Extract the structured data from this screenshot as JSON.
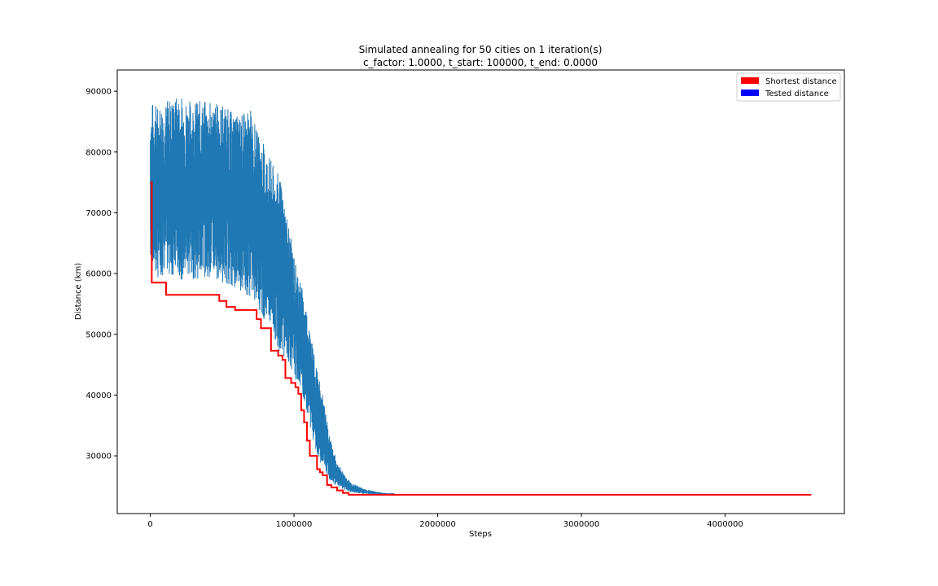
{
  "chart_data": {
    "type": "line",
    "title": "Simulated annealing for 50 cities on 1 iteration(s)",
    "subtitle": "c_factor: 1.0000, t_start: 100000, t_end: 0.0000",
    "xlabel": "Steps",
    "ylabel": "Distance (km)",
    "xlim": [
      -230000,
      4830000
    ],
    "ylim": [
      20500,
      93500
    ],
    "xticks": [
      0,
      1000000,
      2000000,
      3000000,
      4000000
    ],
    "xtick_labels": [
      "0",
      "1000000",
      "2000000",
      "3000000",
      "4000000"
    ],
    "yticks": [
      30000,
      40000,
      50000,
      60000,
      70000,
      80000,
      90000
    ],
    "ytick_labels": [
      "30000",
      "40000",
      "50000",
      "60000",
      "70000",
      "80000",
      "90000"
    ],
    "grid": false,
    "legend_position": "top-right",
    "legend": [
      {
        "label": "Shortest distance",
        "color": "#ff0000"
      },
      {
        "label": "Tested distance",
        "color": "#0000ff"
      }
    ],
    "series": [
      {
        "name": "Tested distance",
        "color": "#1f77b4",
        "envelope": {
          "x": [
            0,
            50000,
            100000,
            200000,
            300000,
            400000,
            500000,
            600000,
            700000,
            750000,
            800000,
            850000,
            900000,
            950000,
            1000000,
            1050000,
            1100000,
            1150000,
            1200000,
            1250000,
            1300000,
            1350000,
            1400000,
            1450000,
            1500000,
            1600000,
            1700000
          ],
          "upper": [
            88500,
            88000,
            88500,
            89500,
            88500,
            88500,
            88000,
            86000,
            87000,
            83000,
            81000,
            78000,
            76000,
            70000,
            63000,
            58500,
            53000,
            45000,
            40000,
            33000,
            29000,
            27000,
            25500,
            25000,
            24500,
            24000,
            23700
          ],
          "lower": [
            60000,
            59000,
            60000,
            59000,
            59000,
            59500,
            58500,
            57500,
            56000,
            54500,
            52000,
            50000,
            47000,
            46000,
            43000,
            41000,
            36000,
            31000,
            28000,
            26000,
            25000,
            24300,
            24000,
            23800,
            23700,
            23650,
            23600
          ]
        }
      },
      {
        "name": "Shortest distance",
        "color": "#ff0000",
        "x": [
          0,
          10000,
          10000,
          110000,
          110000,
          480000,
          480000,
          530000,
          530000,
          590000,
          590000,
          740000,
          740000,
          770000,
          770000,
          840000,
          840000,
          890000,
          890000,
          920000,
          920000,
          940000,
          940000,
          980000,
          980000,
          1010000,
          1010000,
          1030000,
          1030000,
          1050000,
          1050000,
          1070000,
          1070000,
          1090000,
          1090000,
          1110000,
          1110000,
          1160000,
          1160000,
          1180000,
          1180000,
          1200000,
          1200000,
          1230000,
          1230000,
          1260000,
          1260000,
          1300000,
          1300000,
          1340000,
          1340000,
          1380000,
          1380000,
          1420000,
          1420000,
          4600000
        ],
        "y": [
          75000,
          75000,
          58500,
          58500,
          56500,
          56500,
          55500,
          55500,
          54500,
          54500,
          54000,
          54000,
          52500,
          52500,
          51000,
          51000,
          47300,
          47300,
          46500,
          46500,
          45800,
          45800,
          42800,
          42800,
          42000,
          42000,
          41300,
          41300,
          40200,
          40200,
          37500,
          37500,
          35500,
          35500,
          32500,
          32500,
          30000,
          30000,
          27800,
          27800,
          27300,
          27300,
          26800,
          26800,
          25200,
          25200,
          24800,
          24800,
          24300,
          24300,
          23900,
          23900,
          23600,
          23600,
          23600,
          23600
        ]
      }
    ]
  }
}
